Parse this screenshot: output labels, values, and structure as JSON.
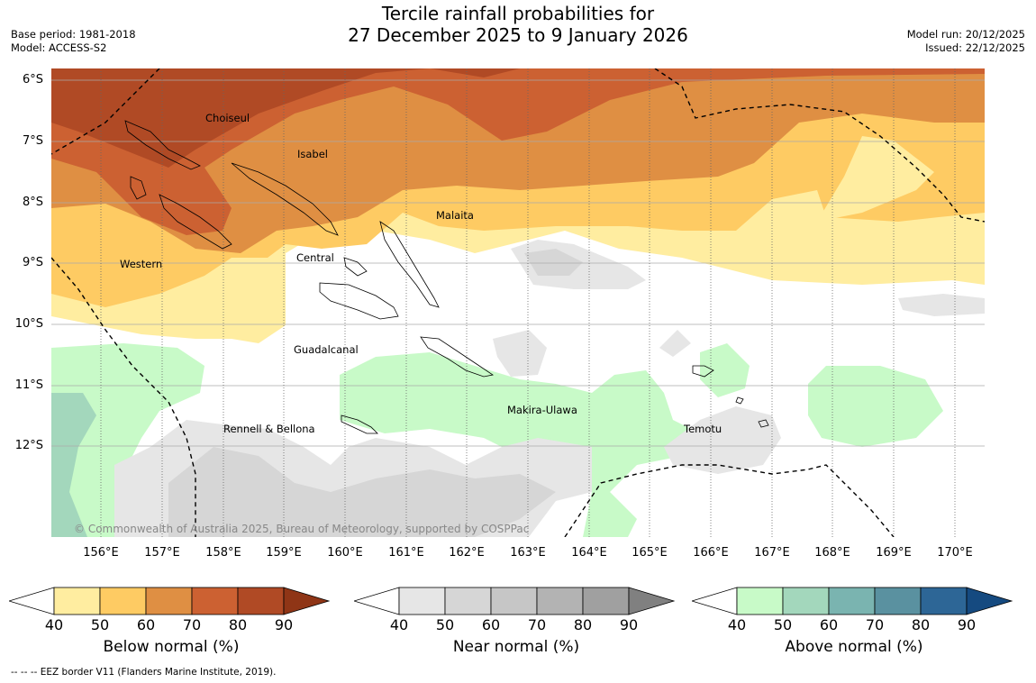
{
  "header": {
    "title_line1": "Tercile rainfall probabilities for",
    "title_line2": "27 December 2025 to 9 January 2026",
    "base_period": "Base period: 1981-2018",
    "model": "Model: ACCESS-S2",
    "model_run": "Model run: 20/12/2025",
    "issued": "Issued: 22/12/2025"
  },
  "map": {
    "lat_labels": [
      "6°S",
      "7°S",
      "8°S",
      "9°S",
      "10°S",
      "11°S",
      "12°S"
    ],
    "lon_labels": [
      "156°E",
      "157°E",
      "158°E",
      "159°E",
      "160°E",
      "161°E",
      "162°E",
      "163°E",
      "164°E",
      "165°E",
      "166°E",
      "167°E",
      "168°E",
      "169°E",
      "170°E"
    ],
    "places": {
      "choiseul": "Choiseul",
      "isabel": "Isabel",
      "malaita": "Malaita",
      "western": "Western",
      "central": "Central",
      "guadalcanal": "Guadalcanal",
      "makira": "Makira-Ulawa",
      "rennell": "Rennell & Bellona",
      "temotu": "Temotu"
    },
    "copyright": "© Commonwealth of Australia 2025, Bureau of Meteorology, supported by COSPPac"
  },
  "colorbars": {
    "below": {
      "label": "Below normal (%)",
      "ticks": [
        "40",
        "50",
        "60",
        "70",
        "80",
        "90"
      ],
      "colors": [
        "#ffffff",
        "#ffeda0",
        "#fecb63",
        "#df8f43",
        "#cc6132",
        "#b04a25",
        "#8f3516"
      ]
    },
    "near": {
      "label": "Near normal (%)",
      "ticks": [
        "40",
        "50",
        "60",
        "70",
        "80",
        "90"
      ],
      "colors": [
        "#ffffff",
        "#e6e6e6",
        "#d6d6d6",
        "#c6c6c6",
        "#b3b3b3",
        "#a0a0a0",
        "#808080"
      ]
    },
    "above": {
      "label": "Above normal (%)",
      "ticks": [
        "40",
        "50",
        "60",
        "70",
        "80",
        "90"
      ],
      "colors": [
        "#ffffff",
        "#c8fac8",
        "#a3d7bc",
        "#7ab4b0",
        "#5a91a0",
        "#2d6696",
        "#154a80"
      ]
    }
  },
  "footer": "--  --  -- EEZ border V11 (Flanders Marine Institute, 2019)."
}
